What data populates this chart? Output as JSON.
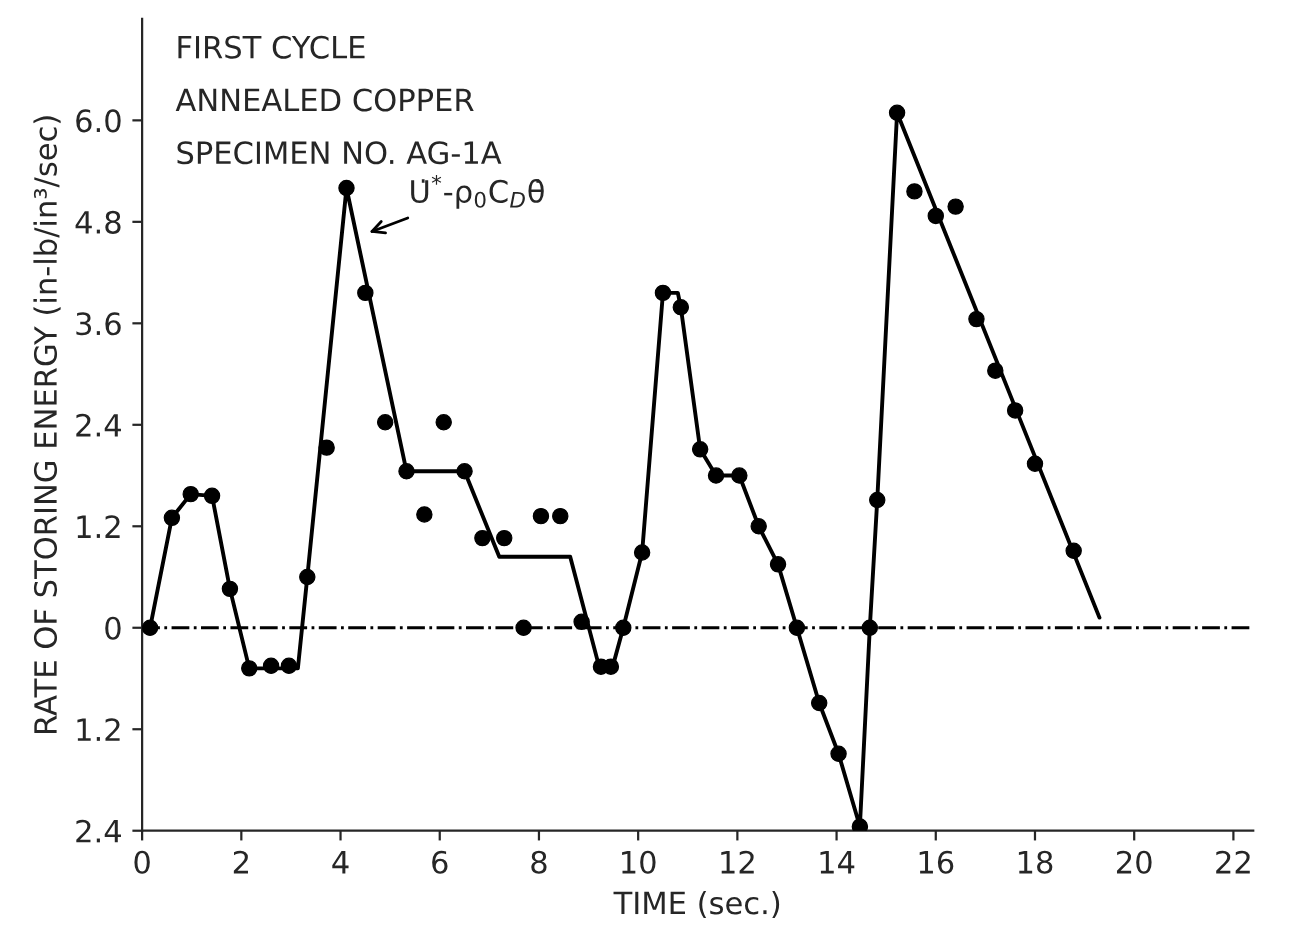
{
  "chart_data": {
    "type": "line",
    "xlabel": "TIME (sec.)",
    "ylabel": "RATE OF STORING ENERGY (in-lb/in³/sec)",
    "xlim": [
      0,
      22.4
    ],
    "ylim": [
      -2.4,
      7.2
    ],
    "xticks": [
      0,
      2,
      4,
      6,
      8,
      10,
      12,
      14,
      16,
      18,
      20,
      22
    ],
    "yticks": [
      {
        "value": -2.4,
        "label": "2.4"
      },
      {
        "value": -1.2,
        "label": "1.2"
      },
      0,
      1.2,
      2.4,
      3.6,
      4.8,
      {
        "value": 6.0,
        "label": "6.0"
      }
    ],
    "grid": false,
    "series": [
      {
        "type": "line",
        "color": "#000000",
        "marker": "none",
        "line_style": "solid",
        "x": [
          0.16,
          0.6,
          0.98,
          1.41,
          1.77,
          2.16,
          3.14,
          3.33,
          4.12,
          5.33,
          6.5,
          7.2,
          8.63,
          9.2,
          9.5,
          9.7,
          10.08,
          10.5,
          10.8,
          10.86,
          11.25,
          11.57,
          12.04,
          12.43,
          12.82,
          13.2,
          13.65,
          14.04,
          14.47,
          14.67,
          14.82,
          15.22,
          19.3
        ],
        "values": [
          0,
          1.3,
          1.58,
          1.56,
          0.46,
          -0.48,
          -0.48,
          0.6,
          5.2,
          1.85,
          1.85,
          0.84,
          0.84,
          -0.43,
          -0.43,
          0,
          0.89,
          3.96,
          3.96,
          3.79,
          2.11,
          1.8,
          1.8,
          1.2,
          0.75,
          0,
          -0.89,
          -1.49,
          -2.35,
          0,
          1.51,
          6.09,
          0.12
        ]
      },
      {
        "type": "scatter",
        "color": "#000000",
        "marker": "circle",
        "x": [
          0.16,
          0.6,
          0.98,
          1.41,
          1.77,
          2.16,
          2.6,
          2.96,
          3.33,
          3.72,
          4.12,
          4.5,
          4.9,
          5.33,
          5.69,
          6.08,
          6.5,
          6.86,
          7.3,
          7.69,
          8.04,
          8.43,
          8.86,
          9.25,
          9.45,
          9.7,
          10.08,
          10.5,
          10.86,
          11.25,
          11.57,
          12.04,
          12.43,
          12.82,
          13.2,
          13.65,
          14.04,
          14.47,
          14.67,
          14.82,
          15.22,
          15.57,
          16.0,
          16.4,
          16.82,
          17.2,
          17.6,
          18.0,
          18.78
        ],
        "values": [
          0,
          1.3,
          1.58,
          1.56,
          0.46,
          -0.48,
          -0.45,
          -0.45,
          0.6,
          2.13,
          5.2,
          3.96,
          2.43,
          1.85,
          1.34,
          2.43,
          1.85,
          1.06,
          1.06,
          0,
          1.32,
          1.32,
          0.07,
          -0.46,
          -0.46,
          0,
          0.89,
          3.96,
          3.79,
          2.11,
          1.8,
          1.8,
          1.2,
          0.75,
          0,
          -0.89,
          -1.49,
          -2.35,
          0,
          1.51,
          6.09,
          5.16,
          4.87,
          4.98,
          3.65,
          3.04,
          2.57,
          1.94,
          0.91
        ]
      }
    ],
    "ref_lines": [
      {
        "axis": "y",
        "value": 0,
        "color": "#000000",
        "line_style": "dashdot"
      }
    ],
    "annotations": [
      "FIRST CYCLE",
      "ANNEALED COPPER",
      "SPECIMEN NO. AG-1A",
      {
        "text": "U̇$^{*}$-ρ$_{0}$C$_{D}$θ̇",
        "x": 4.47,
        "y": 4.65
      }
    ]
  }
}
